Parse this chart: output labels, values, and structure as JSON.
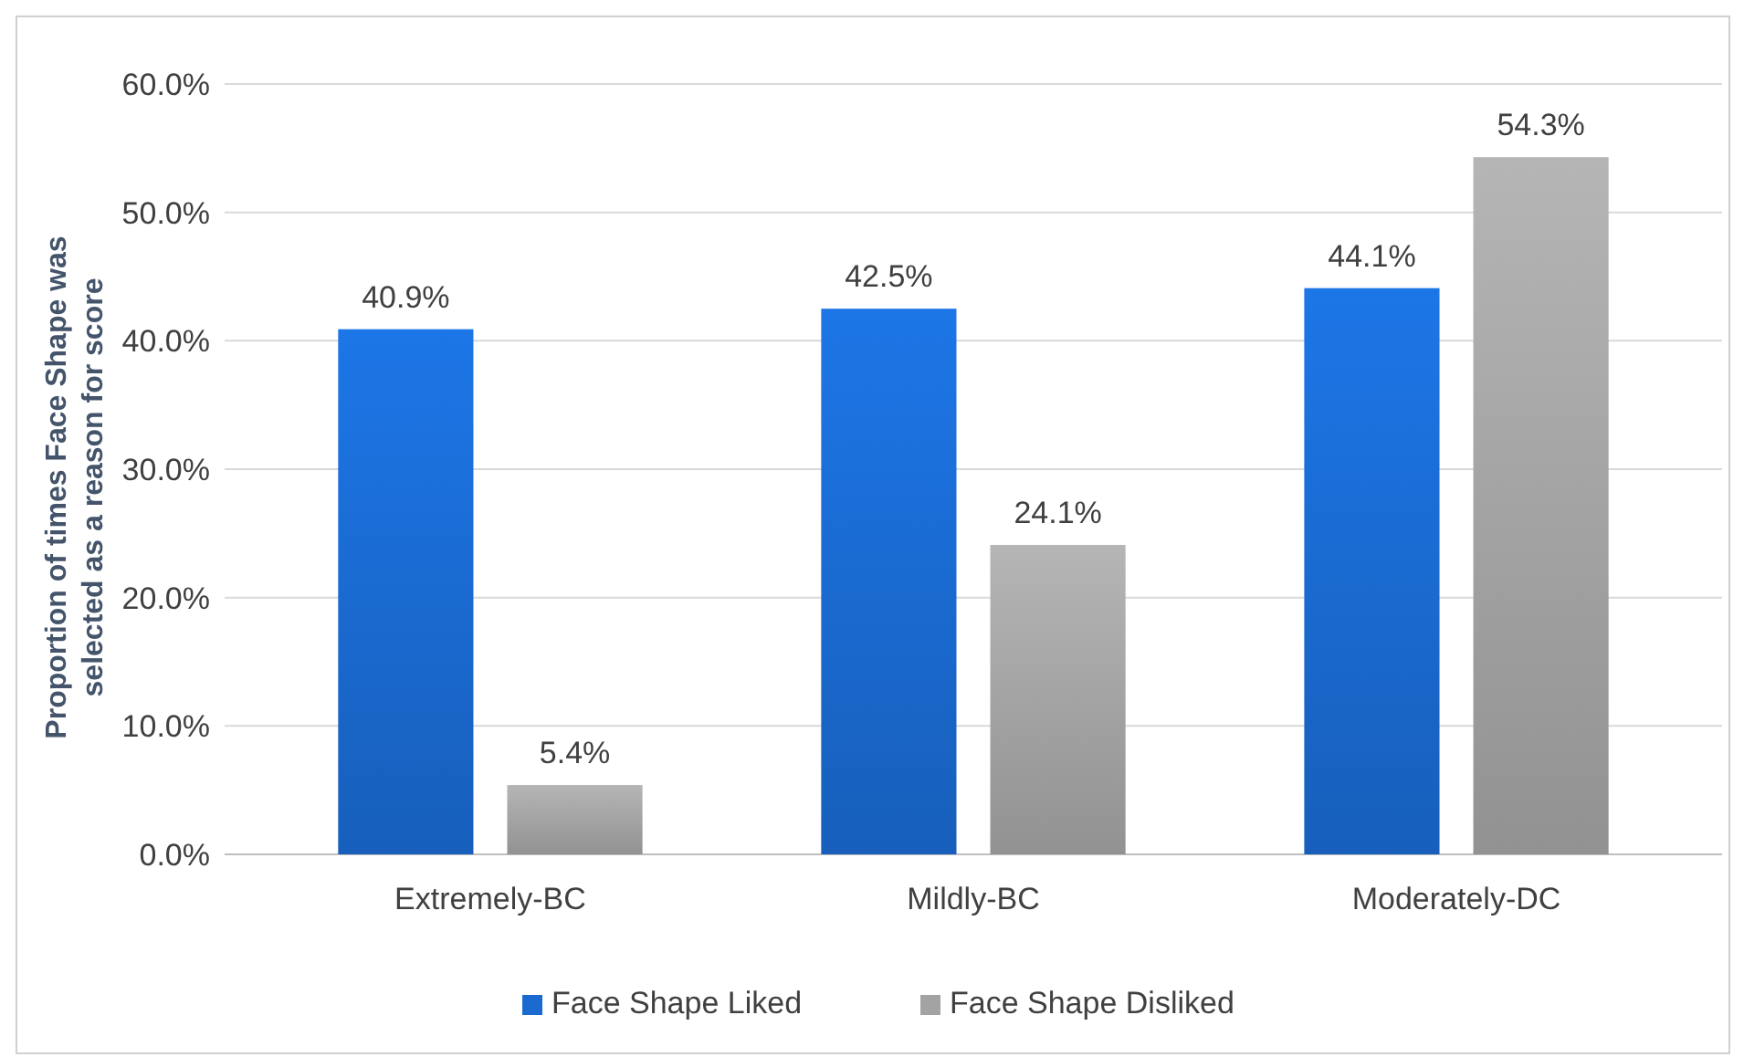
{
  "chart_data": {
    "type": "bar",
    "ylabel": "Proportion of times Face Shape was selected as a reason for score",
    "categories": [
      "Extremely-BC",
      "Mildly-BC",
      "Moderately-DC"
    ],
    "series": [
      {
        "name": "Face Shape Liked",
        "color": "#1a6ad0",
        "values": [
          40.9,
          42.5,
          44.1
        ],
        "value_labels": [
          "40.9%",
          "42.5%",
          "44.1%"
        ]
      },
      {
        "name": "Face Shape Disliked",
        "color": "#a3a3a3",
        "values": [
          5.4,
          24.1,
          54.3
        ],
        "value_labels": [
          "5.4%",
          "24.1%",
          "54.3%"
        ]
      }
    ],
    "ylim": [
      0,
      60
    ],
    "yticks": [
      {
        "value": 0,
        "label": "0.0%"
      },
      {
        "value": 10,
        "label": "10.0%"
      },
      {
        "value": 20,
        "label": "20.0%"
      },
      {
        "value": 30,
        "label": "30.0%"
      },
      {
        "value": 40,
        "label": "40.0%"
      },
      {
        "value": 50,
        "label": "50.0%"
      },
      {
        "value": 60,
        "label": "60.0%"
      }
    ],
    "grid": "y",
    "legend": "bottom"
  }
}
